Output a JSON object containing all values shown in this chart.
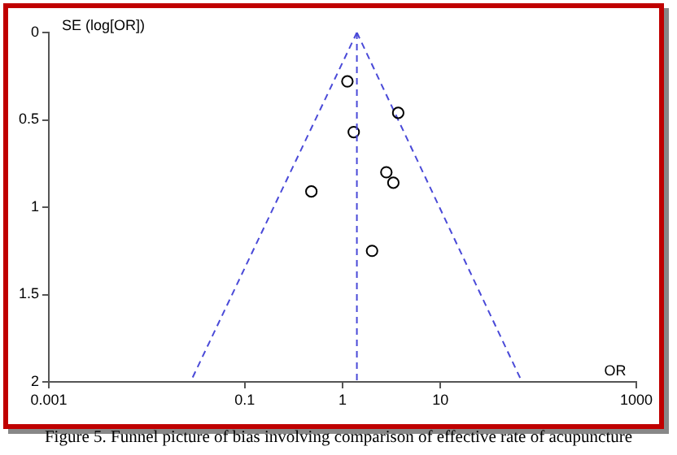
{
  "chart_data": {
    "type": "scatter",
    "xlabel": "OR",
    "ylabel": "SE (log[OR])",
    "log": "x",
    "grid": false,
    "marker": "circle",
    "xlim": [
      0.001,
      1000
    ],
    "xticks": [
      0.001,
      0.1,
      1,
      10,
      1000
    ],
    "ylim": [
      2,
      0
    ],
    "yticks": [
      0,
      0.5,
      1,
      1.5,
      2
    ],
    "series": [
      {
        "color": "#000000",
        "x": [
          1.12,
          3.7,
          1.3,
          2.8,
          3.3,
          0.48,
          2.0
        ],
        "values": [
          0.28,
          0.46,
          0.57,
          0.8,
          0.86,
          0.91,
          1.25
        ]
      },
      {
        "type": "line",
        "color": "#4a4ad8",
        "marker": "none",
        "line_style": "dashed",
        "x": [
          1.4,
          0.028
        ],
        "values": [
          0,
          2
        ]
      },
      {
        "type": "line",
        "color": "#4a4ad8",
        "marker": "none",
        "line_style": "dashed",
        "x": [
          1.4,
          68
        ],
        "values": [
          0,
          2
        ]
      }
    ],
    "ref_lines": [
      {
        "axis": "x",
        "value": 1.4,
        "color": "#4a4ad8",
        "line_style": "dashed"
      }
    ],
    "annotations": [
      "Figure 5. Funnel picture of bias involving comparison of effective rate of acupuncture"
    ]
  }
}
